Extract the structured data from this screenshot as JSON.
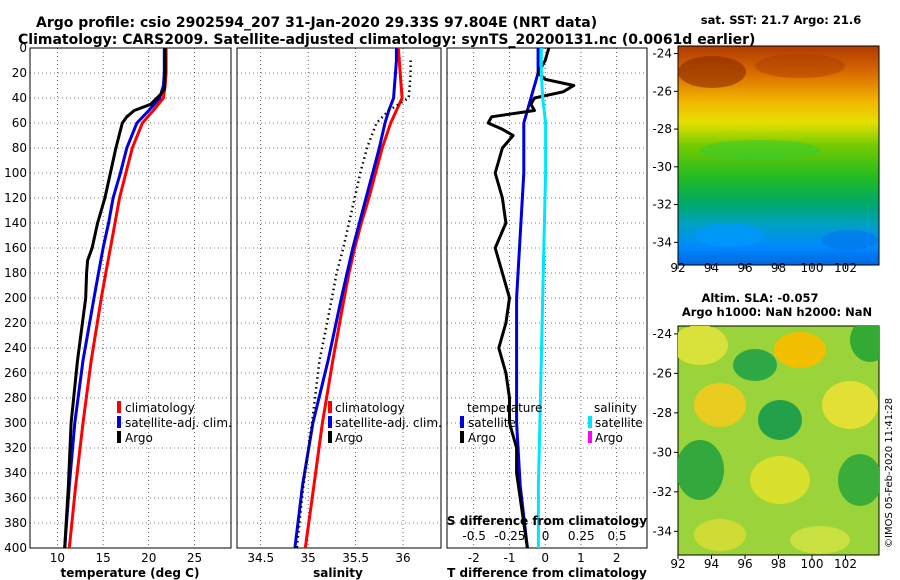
{
  "header": {
    "title_line1": "Argo profile: csio 2902594_207 31-Jan-2020 29.33S 97.804E (NRT data)",
    "title_line2": "Climatology: CARS2009. Satellite-adjusted climatology: synTS_20200131.nc (0.0061d earlier)"
  },
  "maps": {
    "sst_title": "sat. SST: 21.7 Argo: 21.6",
    "sla_title_line1": "Altim. SLA: -0.057",
    "sla_title_line2": "Argo h1000: NaN h2000: NaN",
    "lat_ticks": [
      "-24",
      "-26",
      "-28",
      "-30",
      "-32",
      "-34"
    ],
    "lon_ticks": [
      "92",
      "94",
      "96",
      "98",
      "100",
      "102"
    ]
  },
  "footer": {
    "stamp": "©IMOS 05-Feb-2020 11:41:28"
  },
  "colors": {
    "climatology": "#ff0000",
    "satellite": "#0000dd",
    "argo": "#000000",
    "sal_satellite": "#00e5ff",
    "sal_argo": "#ff00ff"
  },
  "chart_data": [
    {
      "type": "line",
      "name": "temperature",
      "xlabel": "temperature (deg C)",
      "xlim": [
        7,
        29
      ],
      "ylim": [
        400,
        0
      ],
      "x_ticks": [
        "10",
        "15",
        "20",
        "25"
      ],
      "y_ticks": [
        "0",
        "20",
        "40",
        "60",
        "80",
        "100",
        "120",
        "140",
        "160",
        "180",
        "200",
        "220",
        "240",
        "260",
        "280",
        "300",
        "320",
        "340",
        "360",
        "380",
        "400"
      ],
      "grid": true,
      "legend": [
        "climatology",
        "satellite-adj. clim.",
        "Argo"
      ],
      "series": [
        {
          "name": "climatology",
          "depth": [
            0,
            20,
            30,
            40,
            50,
            60,
            80,
            100,
            120,
            140,
            160,
            180,
            200,
            250,
            300,
            350,
            400
          ],
          "values": [
            21.9,
            21.9,
            21.8,
            21.6,
            20.5,
            19.3,
            18.2,
            17.5,
            16.8,
            16.3,
            15.8,
            15.3,
            14.8,
            13.7,
            12.8,
            12.0,
            11.3
          ]
        },
        {
          "name": "satellite-adj. clim.",
          "depth": [
            0,
            20,
            30,
            40,
            50,
            60,
            80,
            100,
            120,
            140,
            160,
            180,
            200,
            250,
            300,
            350,
            400
          ],
          "values": [
            21.7,
            21.7,
            21.6,
            21.2,
            20.0,
            18.7,
            17.6,
            16.9,
            16.1,
            15.6,
            15.0,
            14.5,
            14.0,
            12.8,
            11.9,
            11.3,
            10.8
          ]
        },
        {
          "name": "Argo",
          "depth": [
            0,
            20,
            33,
            37,
            45,
            50,
            55,
            60,
            80,
            100,
            120,
            140,
            160,
            170,
            180,
            200,
            250,
            300,
            350,
            400
          ],
          "values": [
            21.8,
            21.8,
            21.7,
            21.3,
            20.2,
            18.4,
            17.6,
            17.1,
            16.4,
            15.8,
            15.2,
            14.4,
            13.8,
            13.3,
            13.2,
            13.1,
            12.2,
            11.5,
            11.2,
            10.8
          ]
        }
      ]
    },
    {
      "type": "line",
      "name": "salinity",
      "xlabel": "salinity",
      "xlim": [
        34.25,
        36.4
      ],
      "ylim": [
        400,
        0
      ],
      "x_ticks": [
        "34.5",
        "35",
        "35.5",
        "36"
      ],
      "grid": true,
      "legend": [
        "climatology",
        "satellite-adj. clim.",
        "Argo"
      ],
      "series": [
        {
          "name": "climatology",
          "depth": [
            0,
            10,
            20,
            30,
            40,
            50,
            60,
            80,
            100,
            120,
            140,
            160,
            180,
            200,
            250,
            300,
            350,
            400
          ],
          "values": [
            35.95,
            35.96,
            35.97,
            35.98,
            35.99,
            35.93,
            35.87,
            35.78,
            35.71,
            35.64,
            35.56,
            35.49,
            35.43,
            35.38,
            35.26,
            35.15,
            35.06,
            34.97
          ]
        },
        {
          "name": "satellite-adj. clim.",
          "depth": [
            0,
            10,
            20,
            30,
            40,
            50,
            60,
            80,
            100,
            120,
            140,
            160,
            180,
            200,
            250,
            300,
            350,
            400
          ],
          "values": [
            35.93,
            35.93,
            35.92,
            35.91,
            35.9,
            35.85,
            35.81,
            35.75,
            35.68,
            35.61,
            35.54,
            35.47,
            35.41,
            35.35,
            35.21,
            35.05,
            34.94,
            34.86
          ]
        },
        {
          "name": "Argo",
          "depth": [
            10,
            20,
            30,
            40,
            50,
            60,
            80,
            100,
            120,
            140,
            160,
            180,
            200,
            220,
            250,
            300,
            350,
            400
          ],
          "values": [
            36.08,
            36.08,
            36.07,
            36.06,
            35.85,
            35.72,
            35.62,
            35.55,
            35.49,
            35.43,
            35.37,
            35.3,
            35.25,
            35.2,
            35.12,
            35.04,
            34.95,
            34.88
          ]
        }
      ]
    },
    {
      "type": "line",
      "name": "difference",
      "xlabel": "T difference from climatology",
      "xlabel_top": "S difference from climatology",
      "xlim": [
        -2.75,
        2.85
      ],
      "ylim": [
        400,
        0
      ],
      "x_ticks": [
        "-2",
        "-1",
        "0",
        "1",
        "2"
      ],
      "x_ticks_top": [
        "-0.5",
        "-0.25",
        "0",
        "0.25",
        "0.5"
      ],
      "legend_temperature_title": "temperature",
      "legend_salinity_title": "salinity",
      "legend_temperature": [
        "satellite",
        "Argo"
      ],
      "legend_salinity": [
        "satellite",
        "Argo"
      ],
      "series": [
        {
          "name": "satellite",
          "depth": [
            0,
            20,
            40,
            50,
            60,
            80,
            100,
            150,
            200,
            250,
            300,
            350,
            400
          ],
          "values": [
            -0.2,
            -0.2,
            -0.4,
            -0.5,
            -0.6,
            -0.6,
            -0.6,
            -0.7,
            -0.8,
            -0.8,
            -0.8,
            -0.7,
            -0.5
          ]
        },
        {
          "name": "Argo",
          "depth": [
            0,
            10,
            20,
            25,
            30,
            35,
            40,
            45,
            50,
            55,
            60,
            65,
            70,
            80,
            100,
            120,
            140,
            160,
            180,
            200,
            220,
            240,
            260,
            280,
            300,
            320,
            340,
            360,
            380,
            400
          ],
          "values": [
            0.1,
            0.0,
            -0.2,
            0.0,
            0.8,
            0.5,
            -0.3,
            -0.4,
            -0.3,
            -1.5,
            -1.6,
            -1.2,
            -0.9,
            -1.2,
            -1.4,
            -1.2,
            -1.1,
            -1.4,
            -1.2,
            -1.0,
            -1.1,
            -1.3,
            -1.1,
            -1.0,
            -1.0,
            -0.8,
            -0.8,
            -0.7,
            -0.6,
            -0.5
          ]
        },
        {
          "name": "salinity satellite",
          "depth": [
            0,
            20,
            40,
            60,
            80,
            100,
            150,
            200,
            250,
            300,
            350,
            400
          ],
          "values": [
            -0.03,
            -0.03,
            -0.02,
            0.0,
            0.0,
            0.0,
            -0.01,
            -0.02,
            -0.03,
            -0.04,
            -0.05,
            -0.05
          ]
        }
      ]
    }
  ]
}
